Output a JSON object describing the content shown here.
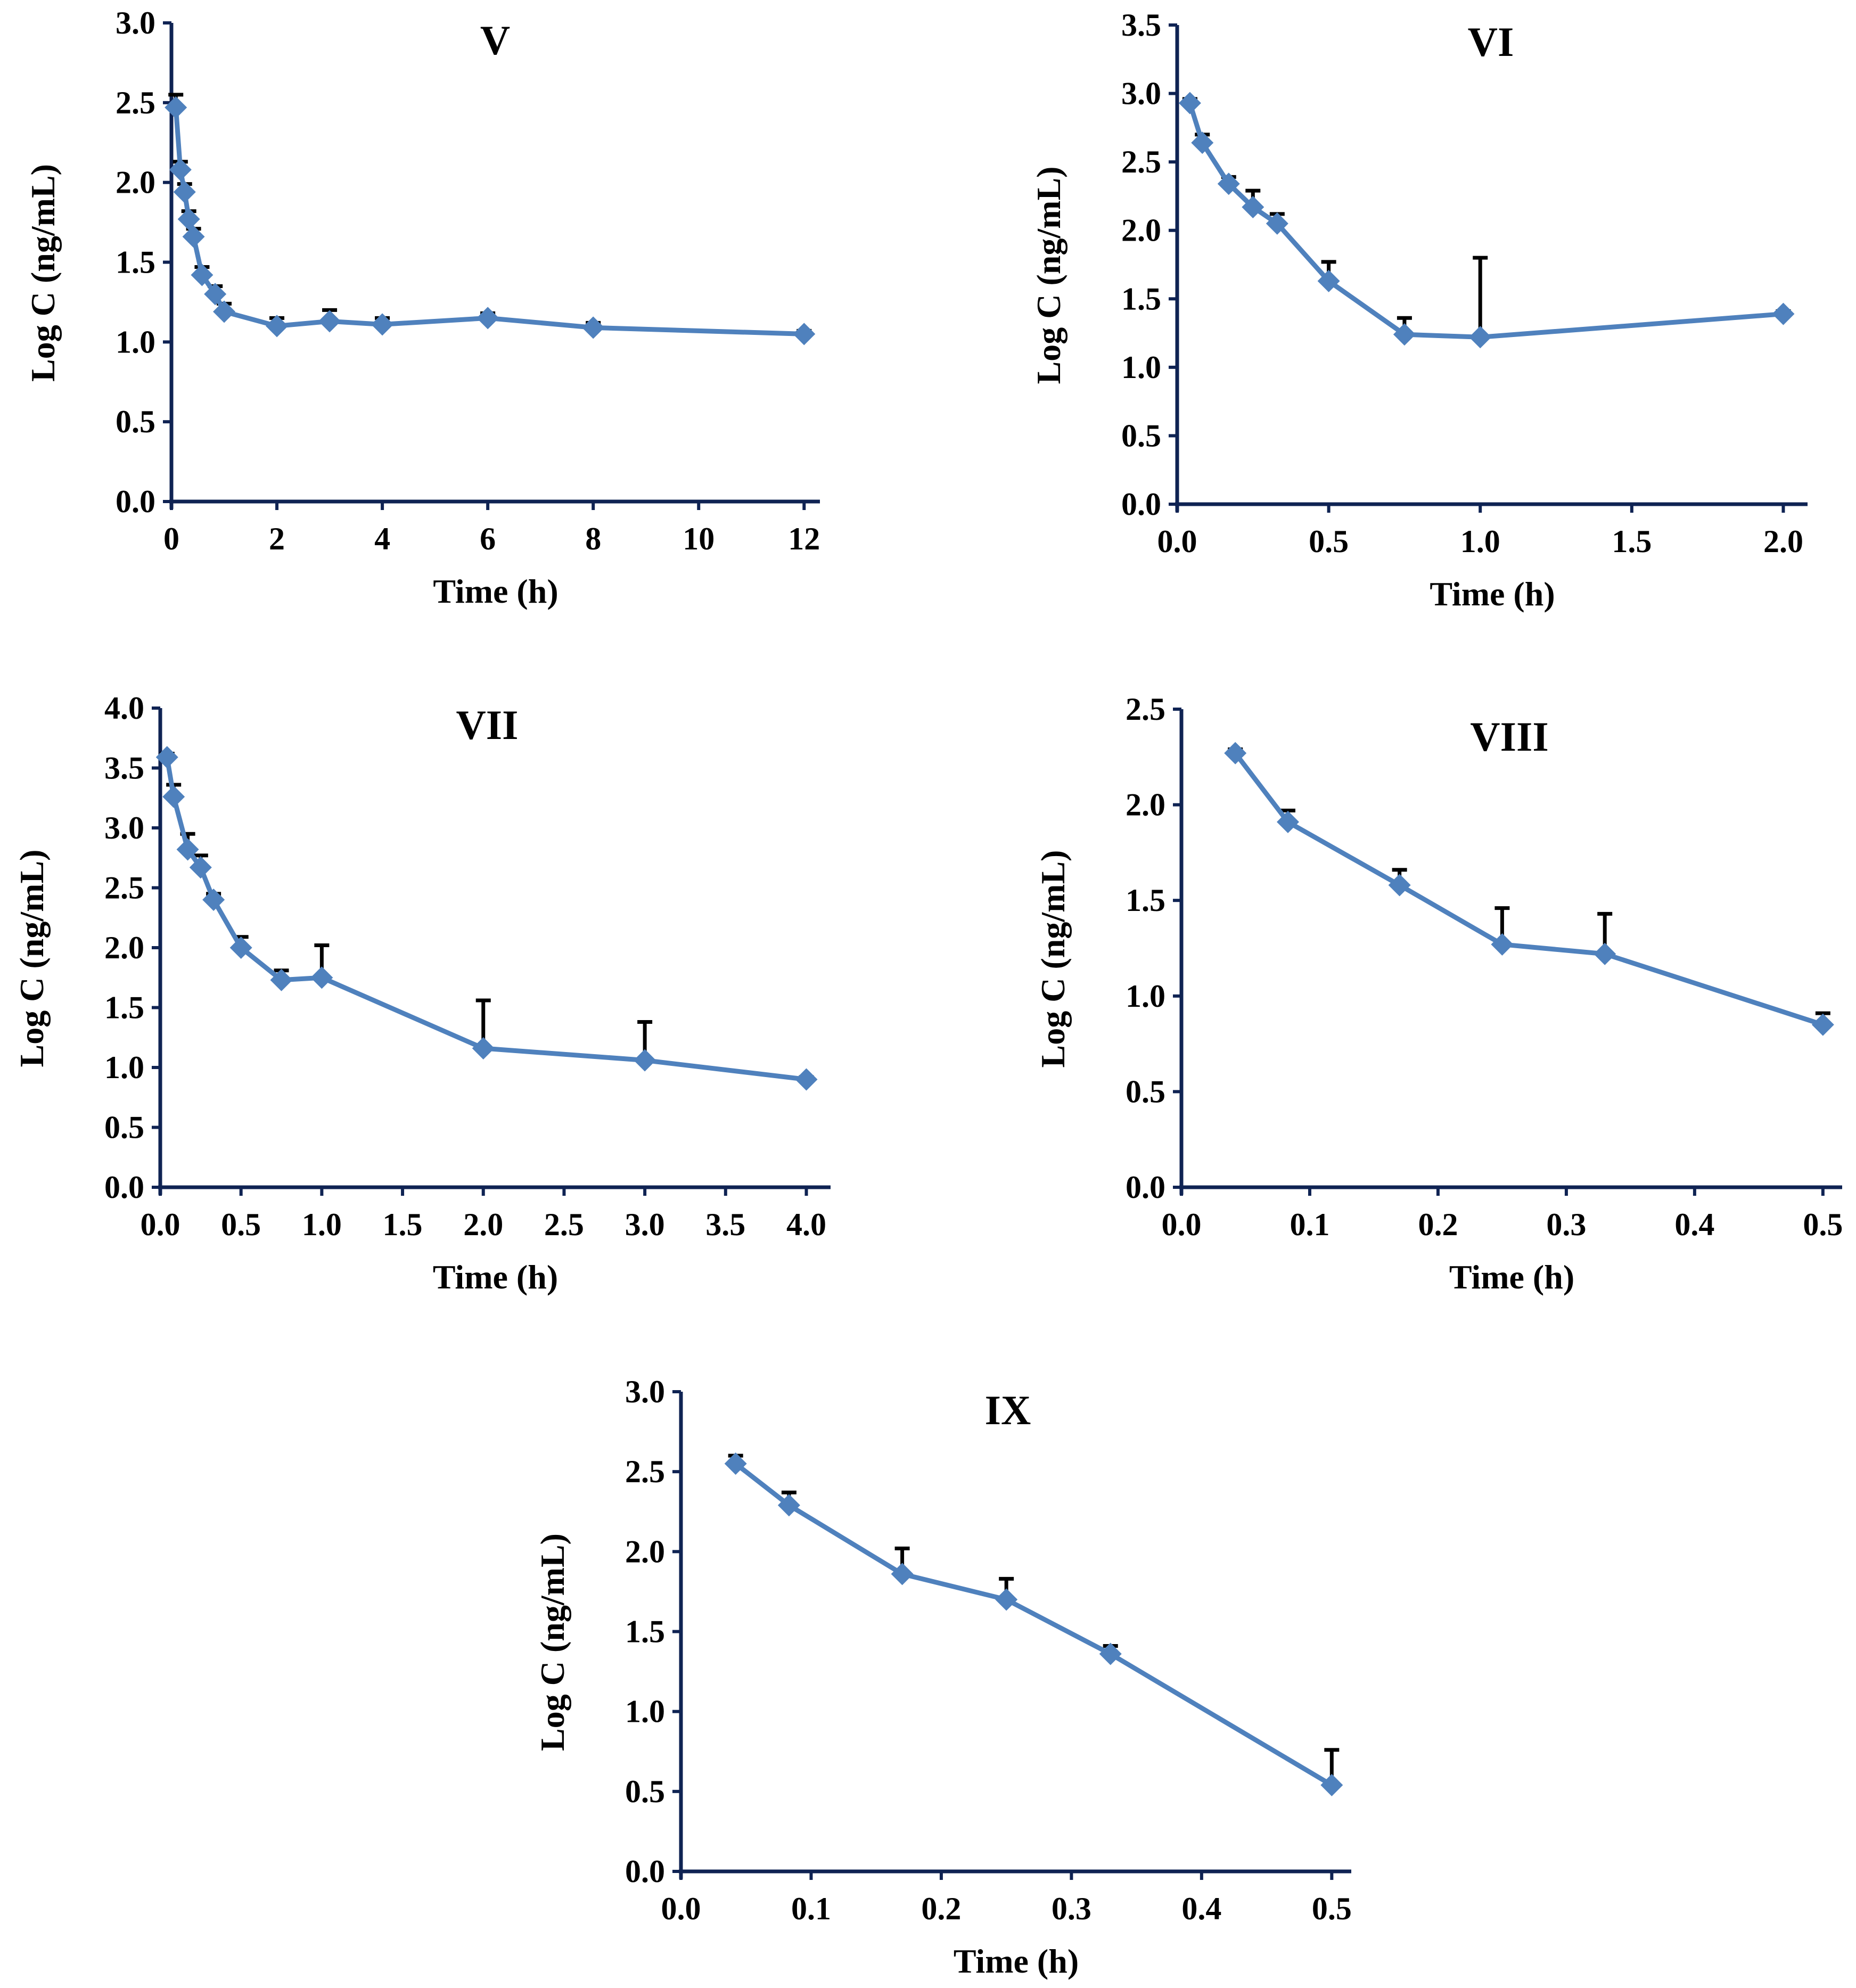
{
  "colors": {
    "series": "#4F81BD",
    "axis": "#0F2353",
    "error_bar": "#000000",
    "text": "#000000"
  },
  "chart_data": [
    {
      "type": "line",
      "title": "V",
      "xlabel": "Time (h)",
      "ylabel": "Log C (ng/mL)",
      "xlim": [
        0,
        12.3
      ],
      "ylim": [
        0,
        3.0
      ],
      "xticks": [
        0,
        2,
        4,
        6,
        8,
        10,
        12
      ],
      "xtick_labels": [
        "0",
        "2",
        "4",
        "6",
        "8",
        "10",
        "12"
      ],
      "yticks": [
        0,
        0.5,
        1.0,
        1.5,
        2.0,
        2.5,
        3.0
      ],
      "ytick_labels": [
        "0.0",
        "0.5",
        "1.0",
        "1.5",
        "2.0",
        "2.5",
        "3.0"
      ],
      "series": [
        {
          "name": "Log C",
          "x": [
            0.083,
            0.17,
            0.25,
            0.33,
            0.42,
            0.58,
            0.83,
            1,
            2,
            3,
            4,
            6,
            8,
            12
          ],
          "y": [
            2.47,
            2.08,
            1.94,
            1.77,
            1.66,
            1.42,
            1.3,
            1.19,
            1.1,
            1.13,
            1.11,
            1.15,
            1.09,
            1.05
          ],
          "error": [
            0.08,
            0.05,
            0.05,
            0.05,
            0.05,
            0.05,
            0.05,
            0.05,
            0.05,
            0.07,
            0.04,
            0.03,
            0.03,
            0.02
          ]
        }
      ]
    },
    {
      "type": "line",
      "title": "VI",
      "xlabel": "Time (h)",
      "ylabel": "Log C (ng/mL)",
      "xlim": [
        0,
        2.08
      ],
      "ylim": [
        0,
        3.5
      ],
      "xticks": [
        0,
        0.5,
        1.0,
        1.5,
        2.0
      ],
      "xtick_labels": [
        "0.0",
        "0.5",
        "1.0",
        "1.5",
        "2.0"
      ],
      "yticks": [
        0,
        0.5,
        1.0,
        1.5,
        2.0,
        2.5,
        3.0,
        3.5
      ],
      "ytick_labels": [
        "0.0",
        "0.5",
        "1.0",
        "1.5",
        "2.0",
        "2.5",
        "3.0",
        "3.5"
      ],
      "series": [
        {
          "name": "Log C",
          "x": [
            0.042,
            0.083,
            0.17,
            0.25,
            0.33,
            0.5,
            0.75,
            1,
            2
          ],
          "y": [
            2.93,
            2.64,
            2.34,
            2.17,
            2.05,
            1.63,
            1.24,
            1.22,
            1.39
          ],
          "error": [
            0.03,
            0.06,
            0.05,
            0.12,
            0.07,
            0.14,
            0.12,
            0.58,
            0.02
          ]
        }
      ]
    },
    {
      "type": "line",
      "title": "VII",
      "xlabel": "Time (h)",
      "ylabel": "Log C (ng/mL)",
      "xlim": [
        0,
        4.15
      ],
      "ylim": [
        0,
        4.0
      ],
      "xticks": [
        0,
        0.5,
        1.0,
        1.5,
        2.0,
        2.5,
        3.0,
        3.5,
        4.0
      ],
      "xtick_labels": [
        "0.0",
        "0.5",
        "1.0",
        "1.5",
        "2.0",
        "2.5",
        "3.0",
        "3.5",
        "4.0"
      ],
      "yticks": [
        0,
        0.5,
        1.0,
        1.5,
        2.0,
        2.5,
        3.0,
        3.5,
        4.0
      ],
      "ytick_labels": [
        "0.0",
        "0.5",
        "1.0",
        "1.5",
        "2.0",
        "2.5",
        "3.0",
        "3.5",
        "4.0"
      ],
      "series": [
        {
          "name": "Log C",
          "x": [
            0.042,
            0.083,
            0.17,
            0.25,
            0.33,
            0.5,
            0.75,
            1,
            2,
            3,
            4
          ],
          "y": [
            3.59,
            3.26,
            2.82,
            2.67,
            2.4,
            2.0,
            1.73,
            1.75,
            1.16,
            1.06,
            0.9
          ],
          "error": [
            0.03,
            0.1,
            0.13,
            0.1,
            0.05,
            0.09,
            0.08,
            0.27,
            0.4,
            0.32,
            0.02
          ]
        }
      ]
    },
    {
      "type": "line",
      "title": "VIII",
      "xlabel": "Time (h)",
      "ylabel": "Log C (ng/mL)",
      "xlim": [
        0,
        0.515
      ],
      "ylim": [
        0,
        2.5
      ],
      "xticks": [
        0,
        0.1,
        0.2,
        0.3,
        0.4,
        0.5
      ],
      "xtick_labels": [
        "0.0",
        "0.1",
        "0.2",
        "0.3",
        "0.4",
        "0.5"
      ],
      "yticks": [
        0,
        0.5,
        1.0,
        1.5,
        2.0,
        2.5
      ],
      "ytick_labels": [
        "0.0",
        "0.5",
        "1.0",
        "1.5",
        "2.0",
        "2.5"
      ],
      "series": [
        {
          "name": "Log C",
          "x": [
            0.042,
            0.083,
            0.17,
            0.25,
            0.33,
            0.5
          ],
          "y": [
            2.27,
            1.91,
            1.58,
            1.27,
            1.22,
            0.85
          ],
          "error": [
            0.02,
            0.06,
            0.08,
            0.19,
            0.21,
            0.06
          ]
        }
      ]
    },
    {
      "type": "line",
      "title": "IX",
      "xlabel": "Time (h)",
      "ylabel": "Log C (ng/mL)",
      "xlim": [
        0,
        0.515
      ],
      "ylim": [
        0,
        3.0
      ],
      "xticks": [
        0,
        0.1,
        0.2,
        0.3,
        0.4,
        0.5
      ],
      "xtick_labels": [
        "0.0",
        "0.1",
        "0.2",
        "0.3",
        "0.4",
        "0.5"
      ],
      "yticks": [
        0,
        0.5,
        1.0,
        1.5,
        2.0,
        2.5,
        3.0
      ],
      "ytick_labels": [
        "0.0",
        "0.5",
        "1.0",
        "1.5",
        "2.0",
        "2.5",
        "3.0"
      ],
      "series": [
        {
          "name": "Log C",
          "x": [
            0.042,
            0.083,
            0.17,
            0.25,
            0.33,
            0.5
          ],
          "y": [
            2.55,
            2.29,
            1.86,
            1.7,
            1.36,
            0.54
          ],
          "error": [
            0.05,
            0.08,
            0.16,
            0.13,
            0.05,
            0.22
          ]
        }
      ]
    }
  ]
}
